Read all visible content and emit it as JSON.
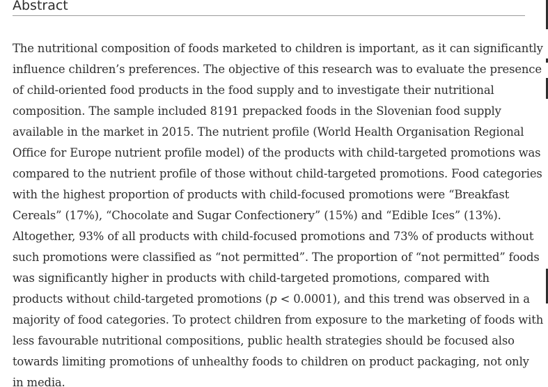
{
  "abstract": {
    "heading": "Abstract",
    "lines": [
      "The nutritional composition of foods marketed to children is important, as it can significantly",
      "influence children’s preferences. The objective of this research was to evaluate the presence",
      "of child-oriented food products in the food supply and to investigate their nutritional",
      "composition. The sample included 8191 prepacked foods in the Slovenian food supply",
      "available in the market in 2015. The nutrient profile (World Health Organisation Regional",
      "Office for Europe nutrient profile model) of the products with child-targeted promotions was",
      "compared to the nutrient profile of those without child-targeted promotions. Food categories",
      "with the highest proportion of products with child-focused promotions were “Breakfast",
      "Cereals” (17%), “Chocolate and Sugar Confectionery” (15%) and “Edible Ices” (13%).",
      "Altogether, 93% of all products with child-focused promotions and 73% of products without",
      "such promotions were classified as “not permitted”. The proportion of “not permitted” foods",
      "was significantly higher in products with child-targeted promotions, compared with",
      "majority of food categories. To protect children from exposure to the marketing of foods with",
      "less favourable nutritional compositions, public health strategies should be focused also",
      "towards limiting promotions of unhealthy foods to children on product packaging, not only",
      "in media."
    ],
    "line_13": {
      "before": "products without child-targeted promotions (",
      "italic": "p",
      "after": " < 0.0001), and this trend was observed in a"
    }
  }
}
